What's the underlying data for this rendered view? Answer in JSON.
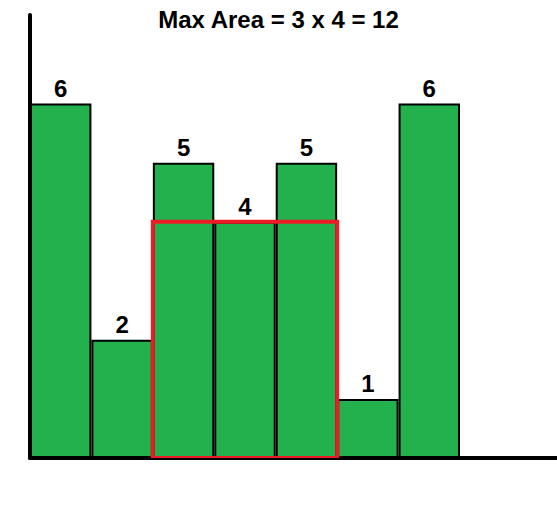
{
  "chart_data": {
    "type": "bar",
    "title": "Max Area = 3 x 4 = 12",
    "categories": [
      null,
      null,
      null,
      null,
      null,
      null,
      null
    ],
    "values": [
      6,
      2,
      5,
      4,
      5,
      1,
      6
    ],
    "color": "#22b14c",
    "ylim": [
      0,
      7.5
    ],
    "grid": false,
    "data_labels": true,
    "tick_labels": false,
    "max_rectangle": {
      "from": 2,
      "to": 4,
      "height": 4,
      "color": "#ed1c24"
    }
  }
}
